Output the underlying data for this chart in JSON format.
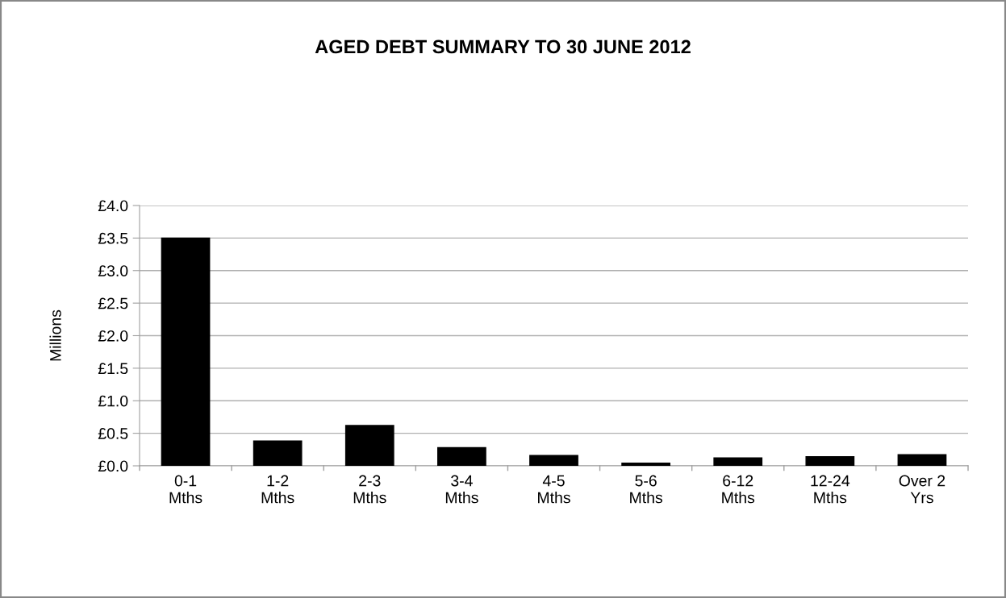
{
  "chart_data": {
    "type": "bar",
    "title": "AGED DEBT SUMMARY TO 30 JUNE 2012",
    "ylabel": "Millions",
    "categories": [
      "0-1\nMths",
      "1-2\nMths",
      "2-3\nMths",
      "3-4\nMths",
      "4-5\nMths",
      "5-6\nMths",
      "6-12\nMths",
      "12-24\nMths",
      "Over 2\nYrs"
    ],
    "values": [
      3.5,
      0.38,
      0.62,
      0.28,
      0.16,
      0.04,
      0.12,
      0.14,
      0.17
    ],
    "color": "#000000",
    "ylim": [
      0,
      4.0
    ],
    "yticks": [
      {
        "value": 0,
        "label": "£0.0"
      },
      {
        "value": 0.5,
        "label": "£0.5"
      },
      {
        "value": 1.0,
        "label": "£1.0"
      },
      {
        "value": 1.5,
        "label": "£1.5"
      },
      {
        "value": 2.0,
        "label": "£2.0"
      },
      {
        "value": 2.5,
        "label": "£2.5"
      },
      {
        "value": 3.0,
        "label": "£3.0"
      },
      {
        "value": 3.5,
        "label": "£3.5"
      },
      {
        "value": 4.0,
        "label": "£4.0"
      }
    ],
    "grid": "y",
    "legend": false
  }
}
